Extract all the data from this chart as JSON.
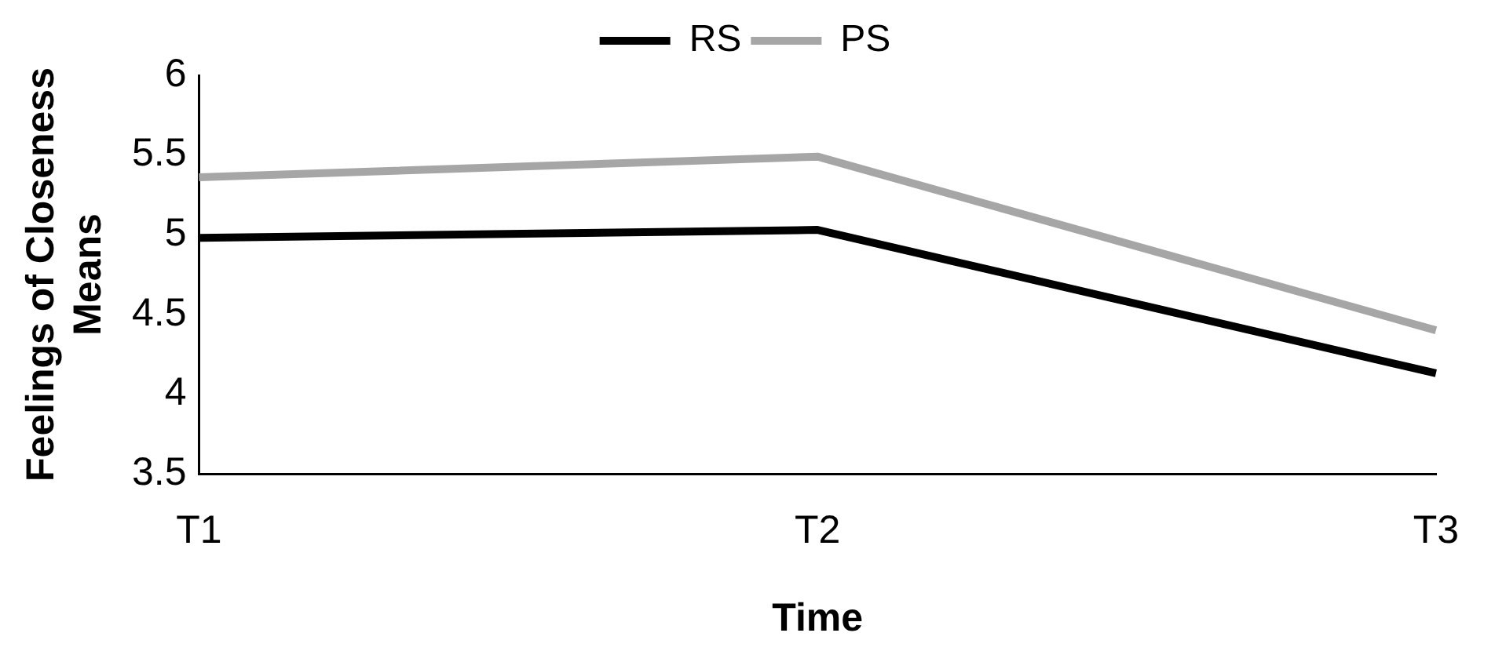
{
  "chart_data": {
    "type": "line",
    "xlabel": "Time",
    "ylabel": "Feelings of Closeness Means",
    "categories": [
      "T1",
      "T2",
      "T3"
    ],
    "series": [
      {
        "name": "RS",
        "color": "#000000",
        "values": [
          4.98,
          5.03,
          4.13
        ]
      },
      {
        "name": "PS",
        "color": "#a6a6a6",
        "values": [
          5.36,
          5.49,
          4.4
        ]
      }
    ],
    "ylim": [
      3.5,
      6
    ],
    "yticks": [
      3.5,
      4,
      4.5,
      5,
      5.5,
      6
    ],
    "grid": false,
    "legend": "top",
    "marker": "none",
    "line_style": "solid"
  }
}
